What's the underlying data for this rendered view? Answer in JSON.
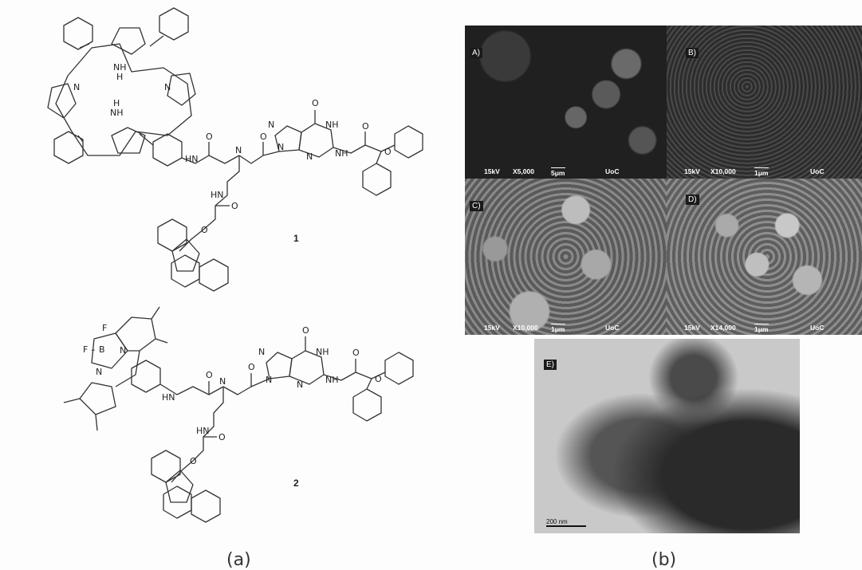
{
  "figure": {
    "caption_a": "(a)",
    "caption_b": "(b)"
  },
  "structures": {
    "compound_1_label": "1",
    "compound_2_label": "2",
    "atoms": {
      "nh": "NH",
      "h": "H",
      "n": "N",
      "o": "O",
      "hn": "HN",
      "f": "F",
      "b": "B",
      "dash": "–"
    }
  },
  "sem_panels": [
    {
      "tag": "A)",
      "kv": "15kV",
      "mag": "X5,000",
      "scale": "5μm",
      "lab": "UoC",
      "tone": "dark"
    },
    {
      "tag": "B)",
      "kv": "15kV",
      "mag": "X10,000",
      "scale": "1μm",
      "lab": "UoC",
      "tone": "porous"
    },
    {
      "tag": "C)",
      "kv": "15kV",
      "mag": "X10,000",
      "scale": "1μm",
      "lab": "UoC",
      "tone": "spheres"
    },
    {
      "tag": "D)",
      "kv": "15kV",
      "mag": "X14,000",
      "scale": "1μm",
      "lab": "UoC",
      "tone": "spheres"
    }
  ],
  "tem_panel": {
    "tag": "E)",
    "scale": "200 nm"
  }
}
